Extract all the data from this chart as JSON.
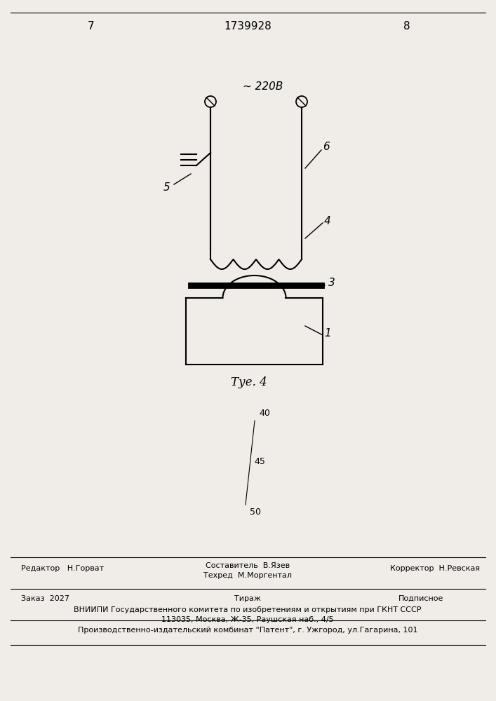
{
  "page_number_left": "7",
  "page_number_right": "8",
  "patent_number": "1739928",
  "fig_label": "Τуе. 4",
  "voltage_label": "~ 220В",
  "bg_color": "#f0ede8",
  "lw": 1.5,
  "footer": {
    "editor": "Редактор   Н.Горват",
    "composer": "Составитель  В.Язев",
    "techred": "Техред  М.Моргентал",
    "corrector": "Корректор  Н.Ревская",
    "order": "Заказ  2027",
    "tirazh": "Тираж",
    "podpisnoe": "Подписное",
    "vniipи": "ВНИИПИ Государственного комитета по изобретениям и открытиям при ГКНТ СССР",
    "address": "113035, Москва, Ж-35, Раушская наб., 4/5",
    "publisher": "Производственно-издательский комбинат \"Патент\", г. Ужгород, ул.Гагарина, 101"
  }
}
